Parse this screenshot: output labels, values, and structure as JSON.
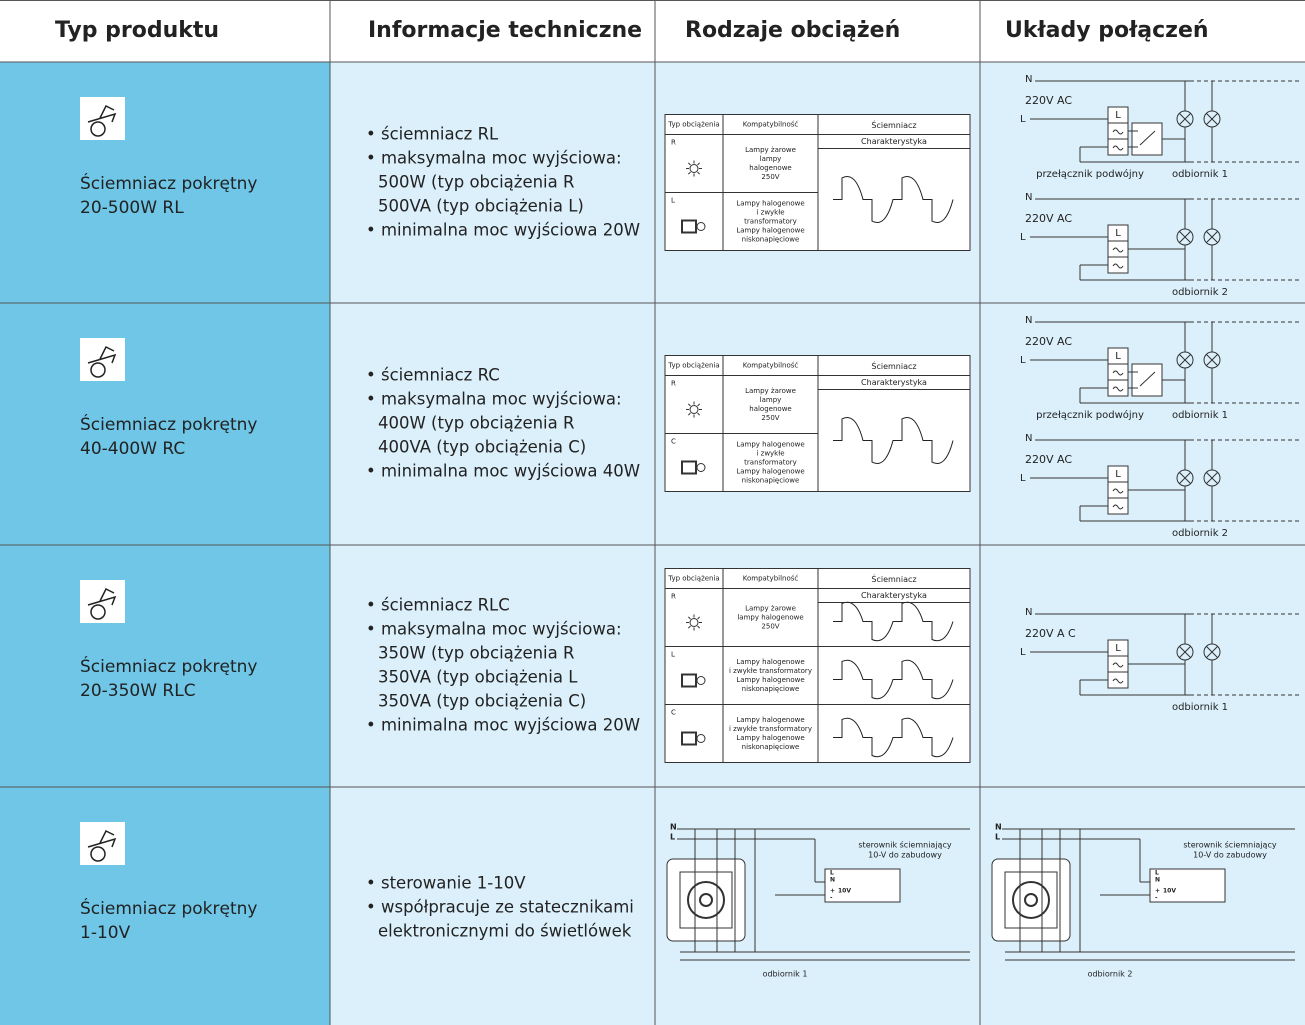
{
  "header": [
    "Typ produktu",
    "Informacje techniczne",
    "Rodzaje obciążeń",
    "Układy połączeń"
  ],
  "rows": [
    {
      "product": [
        "Ściemniacz pokrętny",
        "20-500W RL"
      ],
      "info": [
        "• ściemniacz RL",
        "• maksymalna moc wyjściowa:",
        "500W (typ obciążenia R",
        "500VA (typ obciążenia L)",
        "• minimalna moc wyjściowa 20W"
      ],
      "loads": {
        "columns": [
          "Typ obciążenia",
          "Kompatybilność",
          "Ściemniacz",
          "Charakterystyka"
        ],
        "items": [
          {
            "type": "R",
            "compat": [
              "Lampy żarowe",
              "lampy",
              "halogenowe",
              "250V"
            ]
          },
          {
            "type": "L",
            "compat": [
              "Lampy halogenowe",
              "i zwykłe",
              "transformatory",
              "Lampy halogenowe",
              "niskonapięciowe"
            ]
          }
        ]
      },
      "wiring": [
        {
          "n": "N",
          "supply": "220V AC",
          "l": "L",
          "terminal": "L",
          "switch": "przełącznik podwójny",
          "load": "odbiornik 1"
        },
        {
          "n": "N",
          "supply": "220V AC",
          "l": "L",
          "terminal": "L",
          "load": "odbiornik 2"
        }
      ]
    },
    {
      "product": [
        "Ściemniacz pokrętny",
        "40-400W RC"
      ],
      "info": [
        "• ściemniacz RC",
        "• maksymalna moc wyjściowa:",
        "400W (typ obciążenia R",
        "400VA (typ obciążenia C)",
        "• minimalna moc wyjściowa 40W"
      ],
      "loads": {
        "columns": [
          "Typ obciążenia",
          "Kompatybilność",
          "Ściemniacz",
          "Charakterystyka"
        ],
        "items": [
          {
            "type": "R",
            "compat": [
              "Lampy żarowe",
              "lampy",
              "halogenowe",
              "250V"
            ]
          },
          {
            "type": "C",
            "compat": [
              "Lampy halogenowe",
              "i zwykłe",
              "transformatory",
              "Lampy halogenowe",
              "niskonapięciowe"
            ]
          }
        ]
      },
      "wiring": [
        {
          "n": "N",
          "supply": "220V AC",
          "l": "L",
          "terminal": "L",
          "switch": "przełącznik podwójny",
          "load": "odbiornik 1"
        },
        {
          "n": "N",
          "supply": "220V AC",
          "l": "L",
          "terminal": "L",
          "load": "odbiornik 2"
        }
      ]
    },
    {
      "product": [
        "Ściemniacz pokrętny",
        "20-350W RLC"
      ],
      "info": [
        "• ściemniacz RLC",
        "• maksymalna moc wyjściowa:",
        "350W (typ obciążenia R",
        "350VA (typ obciążenia L",
        "350VA (typ obciążenia C)",
        "• minimalna moc wyjściowa 20W"
      ],
      "loads": {
        "columns": [
          "Typ obciążenia",
          "Kompatybilność",
          "Ściemniacz",
          "Charakterystyka"
        ],
        "items": [
          {
            "type": "R",
            "compat": [
              "Lampy żarowe",
              "lampy halogenowe",
              "250V"
            ]
          },
          {
            "type": "L",
            "compat": [
              "Lampy halogenowe",
              "i zwykłe transformatory",
              "Lampy halogenowe",
              "niskonapięciowe"
            ]
          },
          {
            "type": "C",
            "compat": [
              "Lampy halogenowe",
              "i zwykłe transformatory",
              "Lampy halogenowe",
              "niskonapięciowe"
            ]
          }
        ]
      },
      "wiring": [
        {
          "n": "N",
          "supply": "220V A C",
          "l": "L",
          "terminal": "L",
          "load": "odbiornik 1"
        }
      ]
    },
    {
      "product": [
        "Ściemniacz pokrętny",
        "1-10V"
      ],
      "info": [
        "• sterowanie 1-10V",
        "• współpracuje ze statecznikami",
        "elektronicznymi do świetlówek"
      ],
      "diagrams": [
        {
          "n": "N",
          "l": "L",
          "controller": [
            "sterownik ściemniający",
            "10-V do zabudowy"
          ],
          "pins": [
            "L",
            "N",
            "+",
            "10V",
            "-"
          ],
          "load": "odbiornik 1"
        },
        {
          "n": "N",
          "l": "L",
          "controller": [
            "sterownik ściemniający",
            "10-V do zabudowy"
          ],
          "pins": [
            "L",
            "N",
            "+",
            "10V",
            "-"
          ],
          "load": "odbiornik 2"
        }
      ]
    }
  ]
}
